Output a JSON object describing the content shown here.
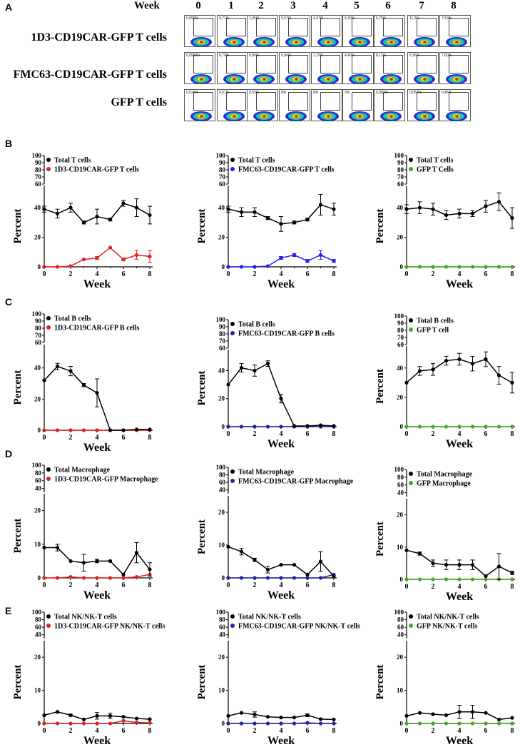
{
  "panel_letters": [
    "A",
    "B",
    "C",
    "D",
    "E"
  ],
  "panelA": {
    "week_label": "Week",
    "weeks": [
      "0",
      "1",
      "2",
      "3",
      "4",
      "5",
      "6",
      "7",
      "8"
    ],
    "rows": [
      {
        "label": "1D3-CD19CAR-GFP T cells",
        "pcts": [
          "0,090%",
          "0,71%",
          "1,05%",
          "5,57%",
          "4,47%",
          "6,30%",
          "6,75%",
          "11,2%",
          "7,59%"
        ]
      },
      {
        "label": "FMC63-CD19CAR-GFP T cells",
        "pcts": [
          "0,0969%",
          "0,70%",
          "0,80%",
          "0,94%",
          "1,19%",
          "4,40%",
          "8,12%",
          "5,36%",
          "7,60%"
        ]
      },
      {
        "label": "GFP T cells",
        "pcts": [
          "0,023%",
          "0,67%",
          "0,55%",
          "0%",
          "0%",
          "0%",
          "0,081%",
          "0,052%",
          "0,45%"
        ]
      }
    ],
    "colors": {
      "blue": "#2233cc",
      "cyan": "#22bbdd",
      "green": "#44cc44",
      "yellow": "#eedd22",
      "red": "#dd2222"
    }
  },
  "chart_data": [
    {
      "panel": "B",
      "type": "line",
      "title": "",
      "xlabel": "Week",
      "ylabel": "Percent",
      "x": [
        0,
        1,
        2,
        3,
        4,
        5,
        6,
        7,
        8
      ],
      "ylim": [
        0,
        100
      ],
      "axis_break": [
        55,
        60
      ],
      "yticks_low": [
        "0",
        "20",
        "40"
      ],
      "yticks_high": [
        "60",
        "70",
        "80",
        "90",
        "100"
      ],
      "series": [
        {
          "name": "Total T cells",
          "color": "#000000",
          "marker": "circle",
          "values": [
            39,
            36,
            40,
            30,
            34,
            32,
            43,
            40,
            35
          ],
          "errors": [
            2,
            3,
            3,
            1,
            5,
            1,
            2,
            6,
            6
          ]
        },
        {
          "name": "1D3-CD19CAR-GFP T cells",
          "color": "#dd2222",
          "marker": "circle",
          "values": [
            0,
            0,
            0.5,
            5,
            6,
            13,
            5,
            8,
            7
          ],
          "errors": [
            0,
            0,
            0,
            0,
            1,
            0,
            1,
            3,
            4
          ]
        }
      ]
    },
    {
      "panel": "B",
      "type": "line",
      "title": "",
      "xlabel": "Week",
      "ylabel": "Percent",
      "x": [
        0,
        1,
        2,
        3,
        4,
        5,
        6,
        7,
        8
      ],
      "ylim": [
        0,
        100
      ],
      "axis_break": [
        55,
        60
      ],
      "yticks_low": [
        "0",
        "20",
        "40"
      ],
      "yticks_high": [
        "60",
        "70",
        "80",
        "90",
        "100"
      ],
      "series": [
        {
          "name": "Total T cells",
          "color": "#000000",
          "marker": "circle",
          "values": [
            39,
            37,
            37,
            33,
            29,
            30,
            32,
            42,
            39
          ],
          "errors": [
            2,
            3,
            3,
            1,
            5,
            1,
            1,
            7,
            4
          ]
        },
        {
          "name": "FMC63-CD19CAR-GFP T cells",
          "color": "#2222ee",
          "marker": "circle",
          "values": [
            0,
            0,
            0,
            0.5,
            6,
            8,
            4,
            8,
            4
          ],
          "errors": [
            0,
            0,
            0,
            0,
            1,
            1,
            1,
            3,
            1
          ]
        }
      ]
    },
    {
      "panel": "B",
      "type": "line",
      "title": "",
      "xlabel": "Week",
      "ylabel": "Percent",
      "x": [
        0,
        1,
        2,
        3,
        4,
        5,
        6,
        7,
        8
      ],
      "ylim": [
        0,
        100
      ],
      "axis_break": [
        55,
        60
      ],
      "yticks_low": [
        "0",
        "20",
        "40"
      ],
      "yticks_high": [
        "60",
        "70",
        "80",
        "90",
        "100"
      ],
      "series": [
        {
          "name": "Total T cells",
          "color": "#000000",
          "marker": "circle",
          "values": [
            39,
            40,
            39,
            35,
            36,
            36,
            41,
            44,
            33
          ],
          "errors": [
            3,
            4,
            4,
            3,
            3,
            2,
            4,
            6,
            7
          ]
        },
        {
          "name": "GFP T Cells",
          "color": "#44aa22",
          "marker": "circle",
          "values": [
            0,
            0,
            0,
            0,
            0,
            0,
            0,
            0,
            0
          ],
          "errors": [
            0,
            0,
            0,
            0,
            0,
            0,
            0,
            0,
            0
          ]
        }
      ]
    },
    {
      "panel": "C",
      "type": "line",
      "title": "",
      "xlabel": "Week",
      "ylabel": "Percent",
      "x": [
        0,
        1,
        2,
        3,
        4,
        5,
        6,
        7,
        8
      ],
      "ylim": [
        0,
        100
      ],
      "axis_break": [
        55,
        60
      ],
      "yticks_low": [
        "0",
        "20",
        "40"
      ],
      "yticks_high": [
        "60",
        "70",
        "80",
        "90",
        "100"
      ],
      "series": [
        {
          "name": "Total B cells",
          "color": "#000000",
          "marker": "circle",
          "values": [
            32,
            41,
            38,
            29,
            24,
            0,
            0,
            0.5,
            0.5
          ],
          "errors": [
            0,
            2,
            3,
            1,
            9,
            0,
            0,
            0,
            0
          ]
        },
        {
          "name": "1D3-CD19CAR-GFP B cells",
          "color": "#dd2222",
          "marker": "circle",
          "values": [
            0,
            0,
            0,
            0,
            0,
            0,
            0,
            0,
            0
          ],
          "errors": [
            0,
            0,
            0,
            0,
            0,
            0,
            0,
            0,
            0
          ]
        }
      ]
    },
    {
      "panel": "C",
      "type": "line",
      "title": "",
      "xlabel": "Week",
      "ylabel": "Percent",
      "x": [
        0,
        1,
        2,
        3,
        4,
        5,
        6,
        7,
        8
      ],
      "ylim": [
        0,
        100
      ],
      "axis_break": [
        55,
        60
      ],
      "yticks_low": [
        "0",
        "20",
        "40"
      ],
      "yticks_high": [
        "60",
        "70",
        "80",
        "90",
        "100"
      ],
      "series": [
        {
          "name": "Total B cells",
          "color": "#000000",
          "marker": "circle",
          "values": [
            30,
            42,
            40,
            45,
            20,
            0.5,
            0.5,
            1,
            0.5
          ],
          "errors": [
            0,
            3,
            4,
            2,
            3,
            0,
            0,
            0,
            0
          ]
        },
        {
          "name": "FMC63-CD19CAR-GFP B cells",
          "color": "#2222aa",
          "marker": "circle",
          "values": [
            0,
            0,
            0,
            0,
            0,
            0,
            0,
            0,
            0
          ],
          "errors": [
            0,
            0,
            0,
            0,
            0,
            0,
            0,
            0,
            0
          ]
        }
      ]
    },
    {
      "panel": "C",
      "type": "line",
      "title": "",
      "xlabel": "Week",
      "ylabel": "Percent",
      "x": [
        0,
        1,
        2,
        3,
        4,
        5,
        6,
        7,
        8
      ],
      "ylim": [
        0,
        100
      ],
      "axis_break": [
        55,
        60
      ],
      "yticks_low": [
        "0",
        "20",
        "40"
      ],
      "yticks_high": [
        "60",
        "70",
        "80",
        "90",
        "100"
      ],
      "series": [
        {
          "name": "Total B cells",
          "color": "#000000",
          "marker": "circle",
          "values": [
            30,
            38,
            39,
            45,
            46,
            43,
            46,
            35,
            30
          ],
          "errors": [
            0,
            3,
            4,
            3,
            4,
            5,
            5,
            6,
            7
          ]
        },
        {
          "name": "GFP T cell",
          "color": "#44aa22",
          "marker": "circle",
          "values": [
            0,
            0,
            0,
            0,
            0,
            0,
            0,
            0,
            0
          ],
          "errors": [
            0,
            0,
            0,
            0,
            0,
            0,
            0,
            0,
            0
          ]
        }
      ]
    },
    {
      "panel": "D",
      "type": "line",
      "title": "",
      "xlabel": "Week",
      "ylabel": "Percent",
      "x": [
        0,
        1,
        2,
        3,
        4,
        5,
        6,
        7,
        8
      ],
      "ylim": [
        0,
        100
      ],
      "axis_break": [
        25,
        30
      ],
      "yticks_low": [
        "0",
        "10",
        "20"
      ],
      "yticks_high": [
        "40",
        "60",
        "80",
        "100"
      ],
      "series": [
        {
          "name": "Total Macrophage",
          "color": "#000000",
          "marker": "circle",
          "values": [
            9,
            9,
            5,
            4.5,
            5,
            5,
            1,
            7.5,
            2.5
          ],
          "errors": [
            0,
            1,
            0,
            2.5,
            0.5,
            0,
            0,
            3,
            2
          ]
        },
        {
          "name": "1D3-CD19CAR-GFP Macrophage",
          "color": "#dd2222",
          "marker": "circle",
          "values": [
            0,
            0,
            0.3,
            0,
            0,
            0,
            0,
            0.3,
            1
          ],
          "errors": [
            0,
            0,
            0,
            0,
            0,
            0,
            0,
            0,
            0
          ]
        }
      ]
    },
    {
      "panel": "D",
      "type": "line",
      "title": "",
      "xlabel": "Week",
      "ylabel": "Percent",
      "x": [
        0,
        1,
        2,
        3,
        4,
        5,
        6,
        7,
        8
      ],
      "ylim": [
        0,
        100
      ],
      "axis_break": [
        25,
        30
      ],
      "yticks_low": [
        "0",
        "10",
        "20"
      ],
      "yticks_high": [
        "40",
        "60",
        "80",
        "100"
      ],
      "series": [
        {
          "name": "Total Macrophage",
          "color": "#000000",
          "marker": "circle",
          "values": [
            9.5,
            8,
            5.5,
            2.5,
            4,
            4,
            1,
            5,
            0.5
          ],
          "errors": [
            0,
            1,
            0.5,
            1,
            0,
            0,
            0,
            3,
            0
          ]
        },
        {
          "name": "FMC63-CD19CAR-GFP Macrophage",
          "color": "#2222aa",
          "marker": "circle",
          "values": [
            0,
            0,
            0,
            0,
            0,
            0,
            0,
            0,
            1
          ],
          "errors": [
            0,
            0,
            0,
            0,
            0,
            0,
            0,
            0,
            0
          ]
        }
      ]
    },
    {
      "panel": "D",
      "type": "line",
      "title": "",
      "xlabel": "Week",
      "ylabel": "Percent",
      "x": [
        0,
        1,
        2,
        3,
        4,
        5,
        6,
        7,
        8
      ],
      "ylim": [
        0,
        100
      ],
      "axis_break": [
        25,
        30
      ],
      "yticks_low": [
        "0",
        "10",
        "20"
      ],
      "yticks_high": [
        "40",
        "60",
        "80",
        "100"
      ],
      "series": [
        {
          "name": "Total Macrophage",
          "color": "#000000",
          "marker": "circle",
          "values": [
            9,
            8,
            5,
            4.5,
            4.5,
            4.5,
            1,
            4,
            2
          ],
          "errors": [
            0,
            0.5,
            1,
            1.5,
            1.5,
            1.5,
            0,
            4,
            0.5
          ]
        },
        {
          "name": "GFP Macrophage",
          "color": "#44aa22",
          "marker": "circle",
          "values": [
            0,
            0,
            0,
            0,
            0,
            0,
            0,
            0,
            0
          ],
          "errors": [
            0,
            0,
            0,
            0,
            0,
            0,
            0,
            0,
            0
          ]
        }
      ]
    },
    {
      "panel": "E",
      "type": "line",
      "title": "",
      "xlabel": "Week",
      "ylabel": "Percent",
      "x": [
        0,
        1,
        2,
        3,
        4,
        5,
        6,
        7,
        8
      ],
      "ylim": [
        0,
        100
      ],
      "axis_break": [
        25,
        30
      ],
      "yticks_low": [
        "0",
        "10",
        "20"
      ],
      "yticks_high": [
        "40",
        "60",
        "80",
        "100"
      ],
      "series": [
        {
          "name": "Total NK/NK-T cells",
          "color": "#000000",
          "marker": "circle",
          "values": [
            2.5,
            3.5,
            2.5,
            1.2,
            2.3,
            2.3,
            2,
            1.5,
            1.3
          ],
          "errors": [
            0,
            0,
            0.3,
            0,
            1,
            0.8,
            0,
            0,
            0
          ]
        },
        {
          "name": "1D3-CD19CAR-GFP NK/NK-T cells",
          "color": "#dd2222",
          "marker": "circle",
          "values": [
            0,
            0,
            0,
            0,
            0,
            0,
            0.8,
            0.3,
            0.2
          ],
          "errors": [
            0,
            0,
            0,
            0,
            0,
            0,
            0,
            0,
            0
          ]
        }
      ]
    },
    {
      "panel": "E",
      "type": "line",
      "title": "",
      "xlabel": "Week",
      "ylabel": "Percent",
      "x": [
        0,
        1,
        2,
        3,
        4,
        5,
        6,
        7,
        8
      ],
      "ylim": [
        0,
        100
      ],
      "axis_break": [
        25,
        30
      ],
      "yticks_low": [
        "0",
        "10",
        "20"
      ],
      "yticks_high": [
        "40",
        "60",
        "80",
        "100"
      ],
      "series": [
        {
          "name": "Total NK/NK-T cells",
          "color": "#000000",
          "marker": "circle",
          "values": [
            2.3,
            3.2,
            2.7,
            2,
            1.8,
            1.8,
            2.5,
            1.3,
            1.2
          ],
          "errors": [
            0,
            0,
            0.8,
            0,
            0,
            0,
            0.4,
            0,
            0
          ]
        },
        {
          "name": "FMC63-CD19CAR-GFP NK/NK-T cells",
          "color": "#2222aa",
          "marker": "circle",
          "values": [
            0,
            0,
            0,
            0,
            0,
            0,
            0.2,
            0,
            0
          ],
          "errors": [
            0,
            0,
            0,
            0,
            0,
            0,
            0,
            0,
            0
          ]
        }
      ]
    },
    {
      "panel": "E",
      "type": "line",
      "title": "",
      "xlabel": "Week",
      "ylabel": "Percent",
      "x": [
        0,
        1,
        2,
        3,
        4,
        5,
        6,
        7,
        8
      ],
      "ylim": [
        0,
        100
      ],
      "axis_break": [
        25,
        30
      ],
      "yticks_low": [
        "0",
        "10",
        "20"
      ],
      "yticks_high": [
        "40",
        "60",
        "80",
        "100"
      ],
      "series": [
        {
          "name": "Total NK/NK-T cells",
          "color": "#000000",
          "marker": "circle",
          "values": [
            2.3,
            3.2,
            2.8,
            2.5,
            3.5,
            3.5,
            3.2,
            1.2,
            1.7
          ],
          "errors": [
            0,
            0,
            0,
            0,
            2,
            2,
            0,
            0,
            0
          ]
        },
        {
          "name": "GFP NK/NK-T cells",
          "color": "#44aa22",
          "marker": "circle",
          "values": [
            0,
            0,
            0,
            0,
            0,
            0,
            0,
            0,
            0
          ],
          "errors": [
            0,
            0,
            0,
            0,
            0,
            0,
            0,
            0,
            0
          ]
        }
      ]
    }
  ]
}
